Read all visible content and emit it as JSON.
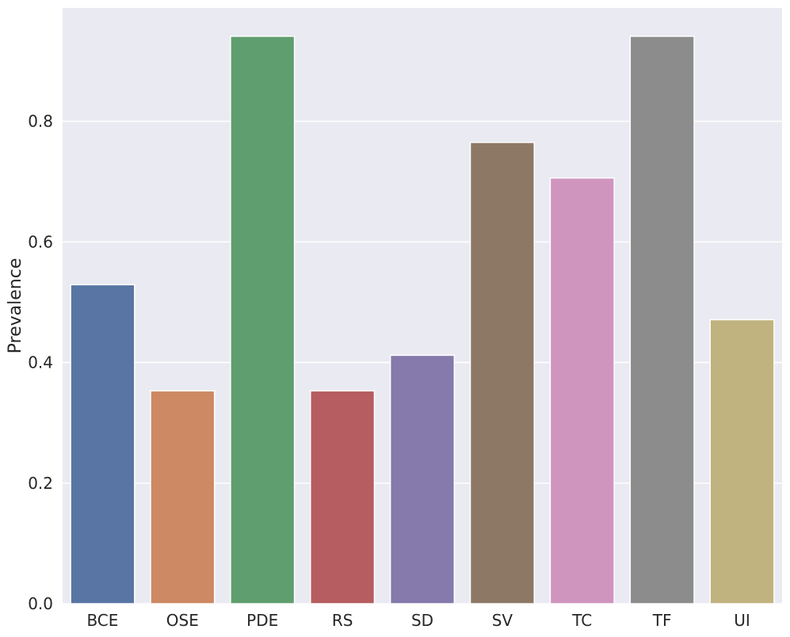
{
  "chart_data": {
    "type": "bar",
    "categories": [
      "BCE",
      "OSE",
      "PDE",
      "RS",
      "SD",
      "SV",
      "TC",
      "TF",
      "UI"
    ],
    "values": [
      0.529,
      0.353,
      0.941,
      0.353,
      0.412,
      0.765,
      0.706,
      0.941,
      0.471
    ],
    "colors": [
      "#5975a4",
      "#cc8963",
      "#5f9e6e",
      "#b55d60",
      "#857aab",
      "#8d7866",
      "#d095bf",
      "#8c8c8c",
      "#c1b37f"
    ],
    "title": "",
    "xlabel": "",
    "ylabel": "Prevalence",
    "ylim": [
      0,
      0.988
    ],
    "yticks": [
      0.0,
      0.2,
      0.4,
      0.6,
      0.8
    ],
    "ytick_labels": [
      "0.0",
      "0.2",
      "0.4",
      "0.6",
      "0.8"
    ],
    "grid": true,
    "background": "#eaeaf2"
  }
}
